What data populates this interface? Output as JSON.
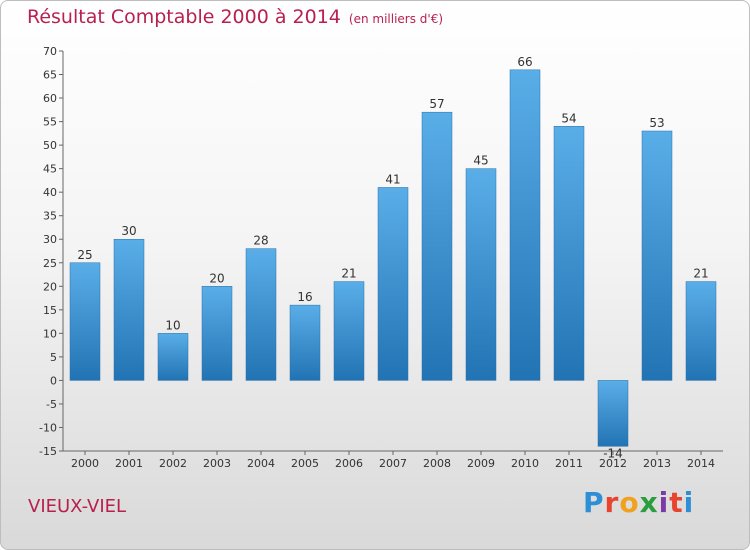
{
  "title": "Résultat Comptable 2000 à 2014",
  "subtitle": "(en milliers d'€)",
  "town": "VIEUX-VIEL",
  "logo_text": "Proxiti",
  "logo_colors": [
    "#2e8fd6",
    "#e8432e",
    "#f0a21e",
    "#2a9d3c",
    "#7c3aa8",
    "#e8432e",
    "#2e8fd6"
  ],
  "colors": {
    "bar_top": "#5aaee8",
    "bar_bottom": "#2273b3",
    "title": "#b8204f"
  },
  "chart_data": {
    "type": "bar",
    "title": "Résultat Comptable 2000 à 2014",
    "subtitle": "(en milliers d'€)",
    "xlabel": "",
    "ylabel": "",
    "categories": [
      "2000",
      "2001",
      "2002",
      "2003",
      "2004",
      "2005",
      "2006",
      "2007",
      "2008",
      "2009",
      "2010",
      "2011",
      "2012",
      "2013",
      "2014"
    ],
    "values": [
      25,
      30,
      10,
      20,
      28,
      16,
      21,
      41,
      57,
      45,
      66,
      54,
      -14,
      53,
      21
    ],
    "ylim": [
      -15,
      70
    ],
    "yticks": [
      -15,
      -10,
      -5,
      0,
      5,
      10,
      15,
      20,
      25,
      30,
      35,
      40,
      45,
      50,
      55,
      60,
      65,
      70
    ],
    "grid": false
  }
}
